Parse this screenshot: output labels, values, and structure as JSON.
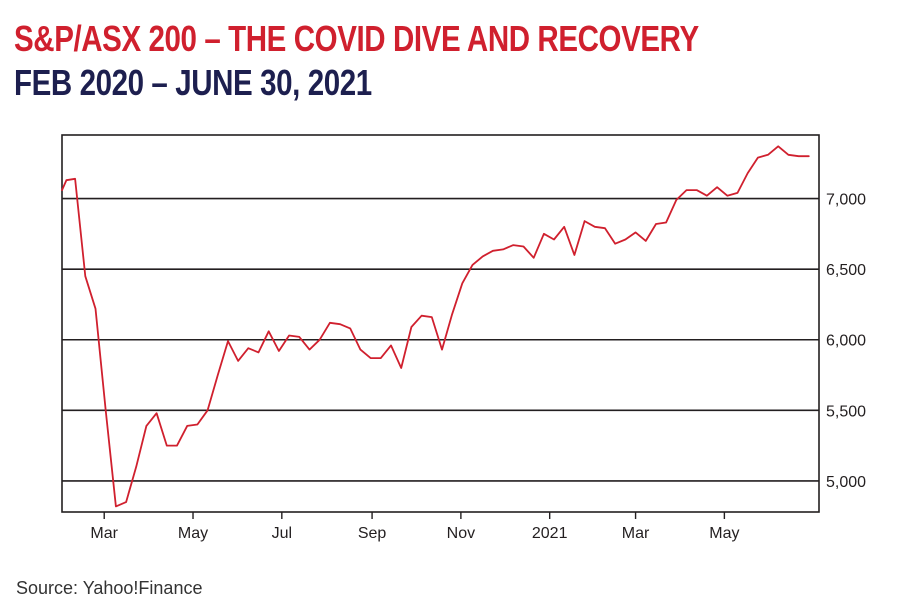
{
  "header": {
    "title": "S&P/ASX 200 – THE COVID DIVE AND RECOVERY",
    "subtitle": "FEB 2020 – JUNE 30, 2021"
  },
  "footer": {
    "source": "Source: Yahoo!Finance"
  },
  "colors": {
    "line": "#d0202e",
    "title": "#d0202e",
    "subtitle": "#1d1f4f",
    "grid": "#231f20"
  },
  "chart_data": {
    "type": "line",
    "title": "S&P/ASX 200 – THE COVID DIVE AND RECOVERY",
    "subtitle": "FEB 2020 – JUNE 30, 2021",
    "xlabel": "",
    "ylabel": "",
    "ylim": [
      4780,
      7450
    ],
    "grid": true,
    "legend": "none",
    "y_axis_side": "right",
    "y_ticks": [
      5000,
      5500,
      6000,
      6500,
      7000
    ],
    "y_tick_labels": [
      "5,000",
      "5,500",
      "6,000",
      "6,500",
      "7,000"
    ],
    "x_range": [
      "2020-02-01",
      "2021-07-05"
    ],
    "x_ticks": [
      "2020-03-01",
      "2020-05-01",
      "2020-07-01",
      "2020-09-01",
      "2020-11-01",
      "2021-01-01",
      "2021-03-01",
      "2021-05-01"
    ],
    "x_tick_labels": [
      "Mar",
      "May",
      "Jul",
      "Sep",
      "Nov",
      "2021",
      "Mar",
      "May"
    ],
    "series": [
      {
        "x": [
          "2020-02-01",
          "2020-02-04",
          "2020-02-10",
          "2020-02-17",
          "2020-02-24",
          "2020-03-02",
          "2020-03-09",
          "2020-03-16",
          "2020-03-23",
          "2020-03-30",
          "2020-04-06",
          "2020-04-13",
          "2020-04-20",
          "2020-04-27",
          "2020-05-04",
          "2020-05-11",
          "2020-05-18",
          "2020-05-25",
          "2020-06-01",
          "2020-06-08",
          "2020-06-15",
          "2020-06-22",
          "2020-06-29",
          "2020-07-06",
          "2020-07-13",
          "2020-07-20",
          "2020-07-27",
          "2020-08-03",
          "2020-08-10",
          "2020-08-17",
          "2020-08-24",
          "2020-08-31",
          "2020-09-07",
          "2020-09-14",
          "2020-09-21",
          "2020-09-28",
          "2020-10-05",
          "2020-10-12",
          "2020-10-19",
          "2020-10-26",
          "2020-11-02",
          "2020-11-09",
          "2020-11-16",
          "2020-11-23",
          "2020-11-30",
          "2020-12-07",
          "2020-12-14",
          "2020-12-21",
          "2020-12-28",
          "2021-01-04",
          "2021-01-11",
          "2021-01-18",
          "2021-01-25",
          "2021-02-01",
          "2021-02-08",
          "2021-02-15",
          "2021-02-22",
          "2021-03-01",
          "2021-03-08",
          "2021-03-15",
          "2021-03-22",
          "2021-03-29",
          "2021-04-05",
          "2021-04-12",
          "2021-04-19",
          "2021-04-26",
          "2021-05-03",
          "2021-05-10",
          "2021-05-17",
          "2021-05-24",
          "2021-05-31",
          "2021-06-07",
          "2021-06-14",
          "2021-06-21",
          "2021-06-28"
        ],
        "values": [
          7060,
          7130,
          7140,
          6450,
          6220,
          5500,
          4820,
          4850,
          5100,
          5390,
          5480,
          5250,
          5250,
          5390,
          5400,
          5500,
          5750,
          5990,
          5850,
          5940,
          5910,
          6060,
          5920,
          6030,
          6020,
          5930,
          6000,
          6120,
          6110,
          6080,
          5930,
          5870,
          5870,
          5960,
          5800,
          6090,
          6170,
          6160,
          5930,
          6180,
          6400,
          6530,
          6590,
          6630,
          6640,
          6670,
          6660,
          6580,
          6750,
          6710,
          6800,
          6600,
          6840,
          6800,
          6790,
          6680,
          6710,
          6760,
          6700,
          6820,
          6830,
          6990,
          7060,
          7060,
          7020,
          7080,
          7020,
          7040,
          7180,
          7290,
          7310,
          7370,
          7310,
          7300,
          7300
        ]
      }
    ]
  }
}
